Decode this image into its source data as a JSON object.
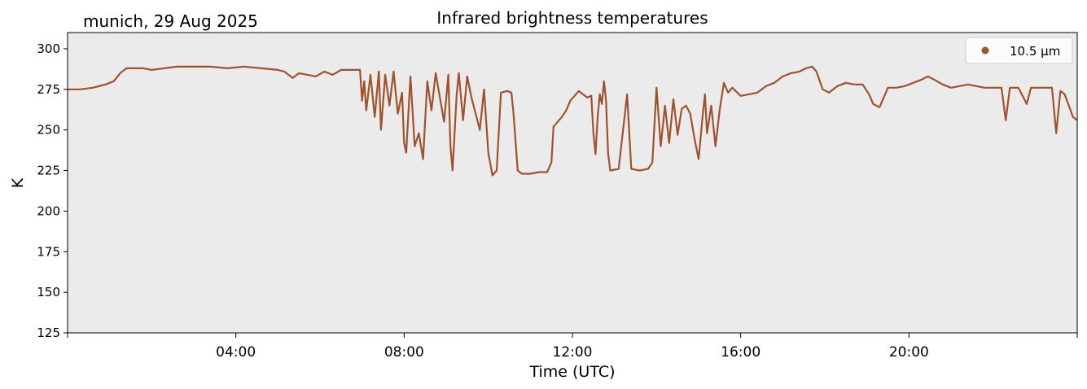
{
  "chart_data": {
    "type": "line",
    "title": "Infrared brightness temperatures",
    "subtitle": "munich, 29 Aug 2025",
    "xlabel": "Time (UTC)",
    "ylabel": "K",
    "x_unit": "hours UTC",
    "xlim": [
      0,
      24
    ],
    "ylim": [
      125,
      310
    ],
    "x_ticks": [
      {
        "value": 4,
        "label": "04:00"
      },
      {
        "value": 8,
        "label": "08:00"
      },
      {
        "value": 12,
        "label": "12:00"
      },
      {
        "value": 16,
        "label": "16:00"
      },
      {
        "value": 20,
        "label": "20:00"
      }
    ],
    "y_ticks": [
      125,
      150,
      175,
      200,
      225,
      250,
      275,
      300
    ],
    "grid": false,
    "background_color": "#ebebeb",
    "legend_position": "top-right",
    "series": [
      {
        "name": "10.5 µm",
        "color": "#a0522d",
        "points": [
          [
            0.0,
            275
          ],
          [
            0.3,
            275
          ],
          [
            0.6,
            276
          ],
          [
            0.9,
            278
          ],
          [
            1.1,
            280
          ],
          [
            1.25,
            285
          ],
          [
            1.4,
            288
          ],
          [
            1.8,
            288
          ],
          [
            2.0,
            287
          ],
          [
            2.3,
            288
          ],
          [
            2.6,
            289
          ],
          [
            3.0,
            289
          ],
          [
            3.4,
            289
          ],
          [
            3.8,
            288
          ],
          [
            4.2,
            289
          ],
          [
            4.6,
            288
          ],
          [
            5.0,
            287
          ],
          [
            5.15,
            286
          ],
          [
            5.25,
            284
          ],
          [
            5.35,
            282
          ],
          [
            5.5,
            285
          ],
          [
            5.7,
            284
          ],
          [
            5.9,
            283
          ],
          [
            6.1,
            286
          ],
          [
            6.3,
            284
          ],
          [
            6.5,
            287
          ],
          [
            6.8,
            287
          ],
          [
            6.95,
            287
          ],
          [
            7.0,
            268
          ],
          [
            7.05,
            280
          ],
          [
            7.1,
            262
          ],
          [
            7.2,
            284
          ],
          [
            7.3,
            258
          ],
          [
            7.4,
            286
          ],
          [
            7.45,
            250
          ],
          [
            7.55,
            284
          ],
          [
            7.65,
            265
          ],
          [
            7.75,
            286
          ],
          [
            7.85,
            260
          ],
          [
            7.95,
            273
          ],
          [
            8.0,
            242
          ],
          [
            8.05,
            236
          ],
          [
            8.15,
            283
          ],
          [
            8.25,
            240
          ],
          [
            8.35,
            248
          ],
          [
            8.45,
            232
          ],
          [
            8.55,
            280
          ],
          [
            8.65,
            262
          ],
          [
            8.75,
            285
          ],
          [
            8.85,
            270
          ],
          [
            8.95,
            255
          ],
          [
            9.05,
            284
          ],
          [
            9.1,
            240
          ],
          [
            9.15,
            225
          ],
          [
            9.25,
            272
          ],
          [
            9.3,
            285
          ],
          [
            9.4,
            256
          ],
          [
            9.5,
            283
          ],
          [
            9.6,
            270
          ],
          [
            9.7,
            260
          ],
          [
            9.8,
            250
          ],
          [
            9.9,
            275
          ],
          [
            10.0,
            236
          ],
          [
            10.1,
            222
          ],
          [
            10.2,
            225
          ],
          [
            10.3,
            273
          ],
          [
            10.45,
            274
          ],
          [
            10.55,
            273
          ],
          [
            10.6,
            260
          ],
          [
            10.7,
            225
          ],
          [
            10.8,
            223
          ],
          [
            11.0,
            223
          ],
          [
            11.2,
            224
          ],
          [
            11.4,
            224
          ],
          [
            11.5,
            230
          ],
          [
            11.55,
            252
          ],
          [
            11.65,
            255
          ],
          [
            11.75,
            258
          ],
          [
            11.85,
            262
          ],
          [
            11.95,
            268
          ],
          [
            12.05,
            271
          ],
          [
            12.15,
            274
          ],
          [
            12.25,
            272
          ],
          [
            12.35,
            270
          ],
          [
            12.45,
            271
          ],
          [
            12.5,
            248
          ],
          [
            12.55,
            235
          ],
          [
            12.6,
            258
          ],
          [
            12.65,
            272
          ],
          [
            12.7,
            266
          ],
          [
            12.75,
            280
          ],
          [
            12.8,
            268
          ],
          [
            12.85,
            235
          ],
          [
            12.9,
            225
          ],
          [
            13.1,
            226
          ],
          [
            13.3,
            272
          ],
          [
            13.4,
            226
          ],
          [
            13.6,
            225
          ],
          [
            13.8,
            226
          ],
          [
            13.9,
            230
          ],
          [
            14.0,
            276
          ],
          [
            14.1,
            240
          ],
          [
            14.2,
            265
          ],
          [
            14.3,
            242
          ],
          [
            14.4,
            269
          ],
          [
            14.5,
            247
          ],
          [
            14.6,
            263
          ],
          [
            14.7,
            265
          ],
          [
            14.8,
            260
          ],
          [
            14.9,
            245
          ],
          [
            15.0,
            232
          ],
          [
            15.1,
            260
          ],
          [
            15.15,
            272
          ],
          [
            15.2,
            248
          ],
          [
            15.3,
            265
          ],
          [
            15.4,
            240
          ],
          [
            15.5,
            262
          ],
          [
            15.6,
            279
          ],
          [
            15.7,
            273
          ],
          [
            15.8,
            276
          ],
          [
            16.0,
            271
          ],
          [
            16.2,
            272
          ],
          [
            16.4,
            273
          ],
          [
            16.6,
            277
          ],
          [
            16.8,
            279
          ],
          [
            17.0,
            283
          ],
          [
            17.2,
            285
          ],
          [
            17.4,
            286
          ],
          [
            17.55,
            288
          ],
          [
            17.7,
            289
          ],
          [
            17.8,
            286
          ],
          [
            17.95,
            275
          ],
          [
            18.1,
            273
          ],
          [
            18.3,
            277
          ],
          [
            18.5,
            279
          ],
          [
            18.7,
            278
          ],
          [
            18.9,
            278
          ],
          [
            19.05,
            272
          ],
          [
            19.15,
            266
          ],
          [
            19.3,
            264
          ],
          [
            19.5,
            276
          ],
          [
            19.7,
            276
          ],
          [
            19.9,
            277
          ],
          [
            20.1,
            279
          ],
          [
            20.3,
            281
          ],
          [
            20.45,
            283
          ],
          [
            20.6,
            281
          ],
          [
            20.8,
            278
          ],
          [
            21.0,
            276
          ],
          [
            21.2,
            277
          ],
          [
            21.4,
            278
          ],
          [
            21.6,
            277
          ],
          [
            21.8,
            276
          ],
          [
            22.0,
            276
          ],
          [
            22.2,
            276
          ],
          [
            22.3,
            256
          ],
          [
            22.4,
            276
          ],
          [
            22.6,
            276
          ],
          [
            22.8,
            266
          ],
          [
            22.9,
            276
          ],
          [
            23.1,
            276
          ],
          [
            23.3,
            276
          ],
          [
            23.4,
            276
          ],
          [
            23.45,
            262
          ],
          [
            23.5,
            248
          ],
          [
            23.6,
            274
          ],
          [
            23.7,
            272
          ],
          [
            23.8,
            265
          ],
          [
            23.9,
            258
          ],
          [
            24.0,
            256
          ]
        ]
      }
    ]
  }
}
